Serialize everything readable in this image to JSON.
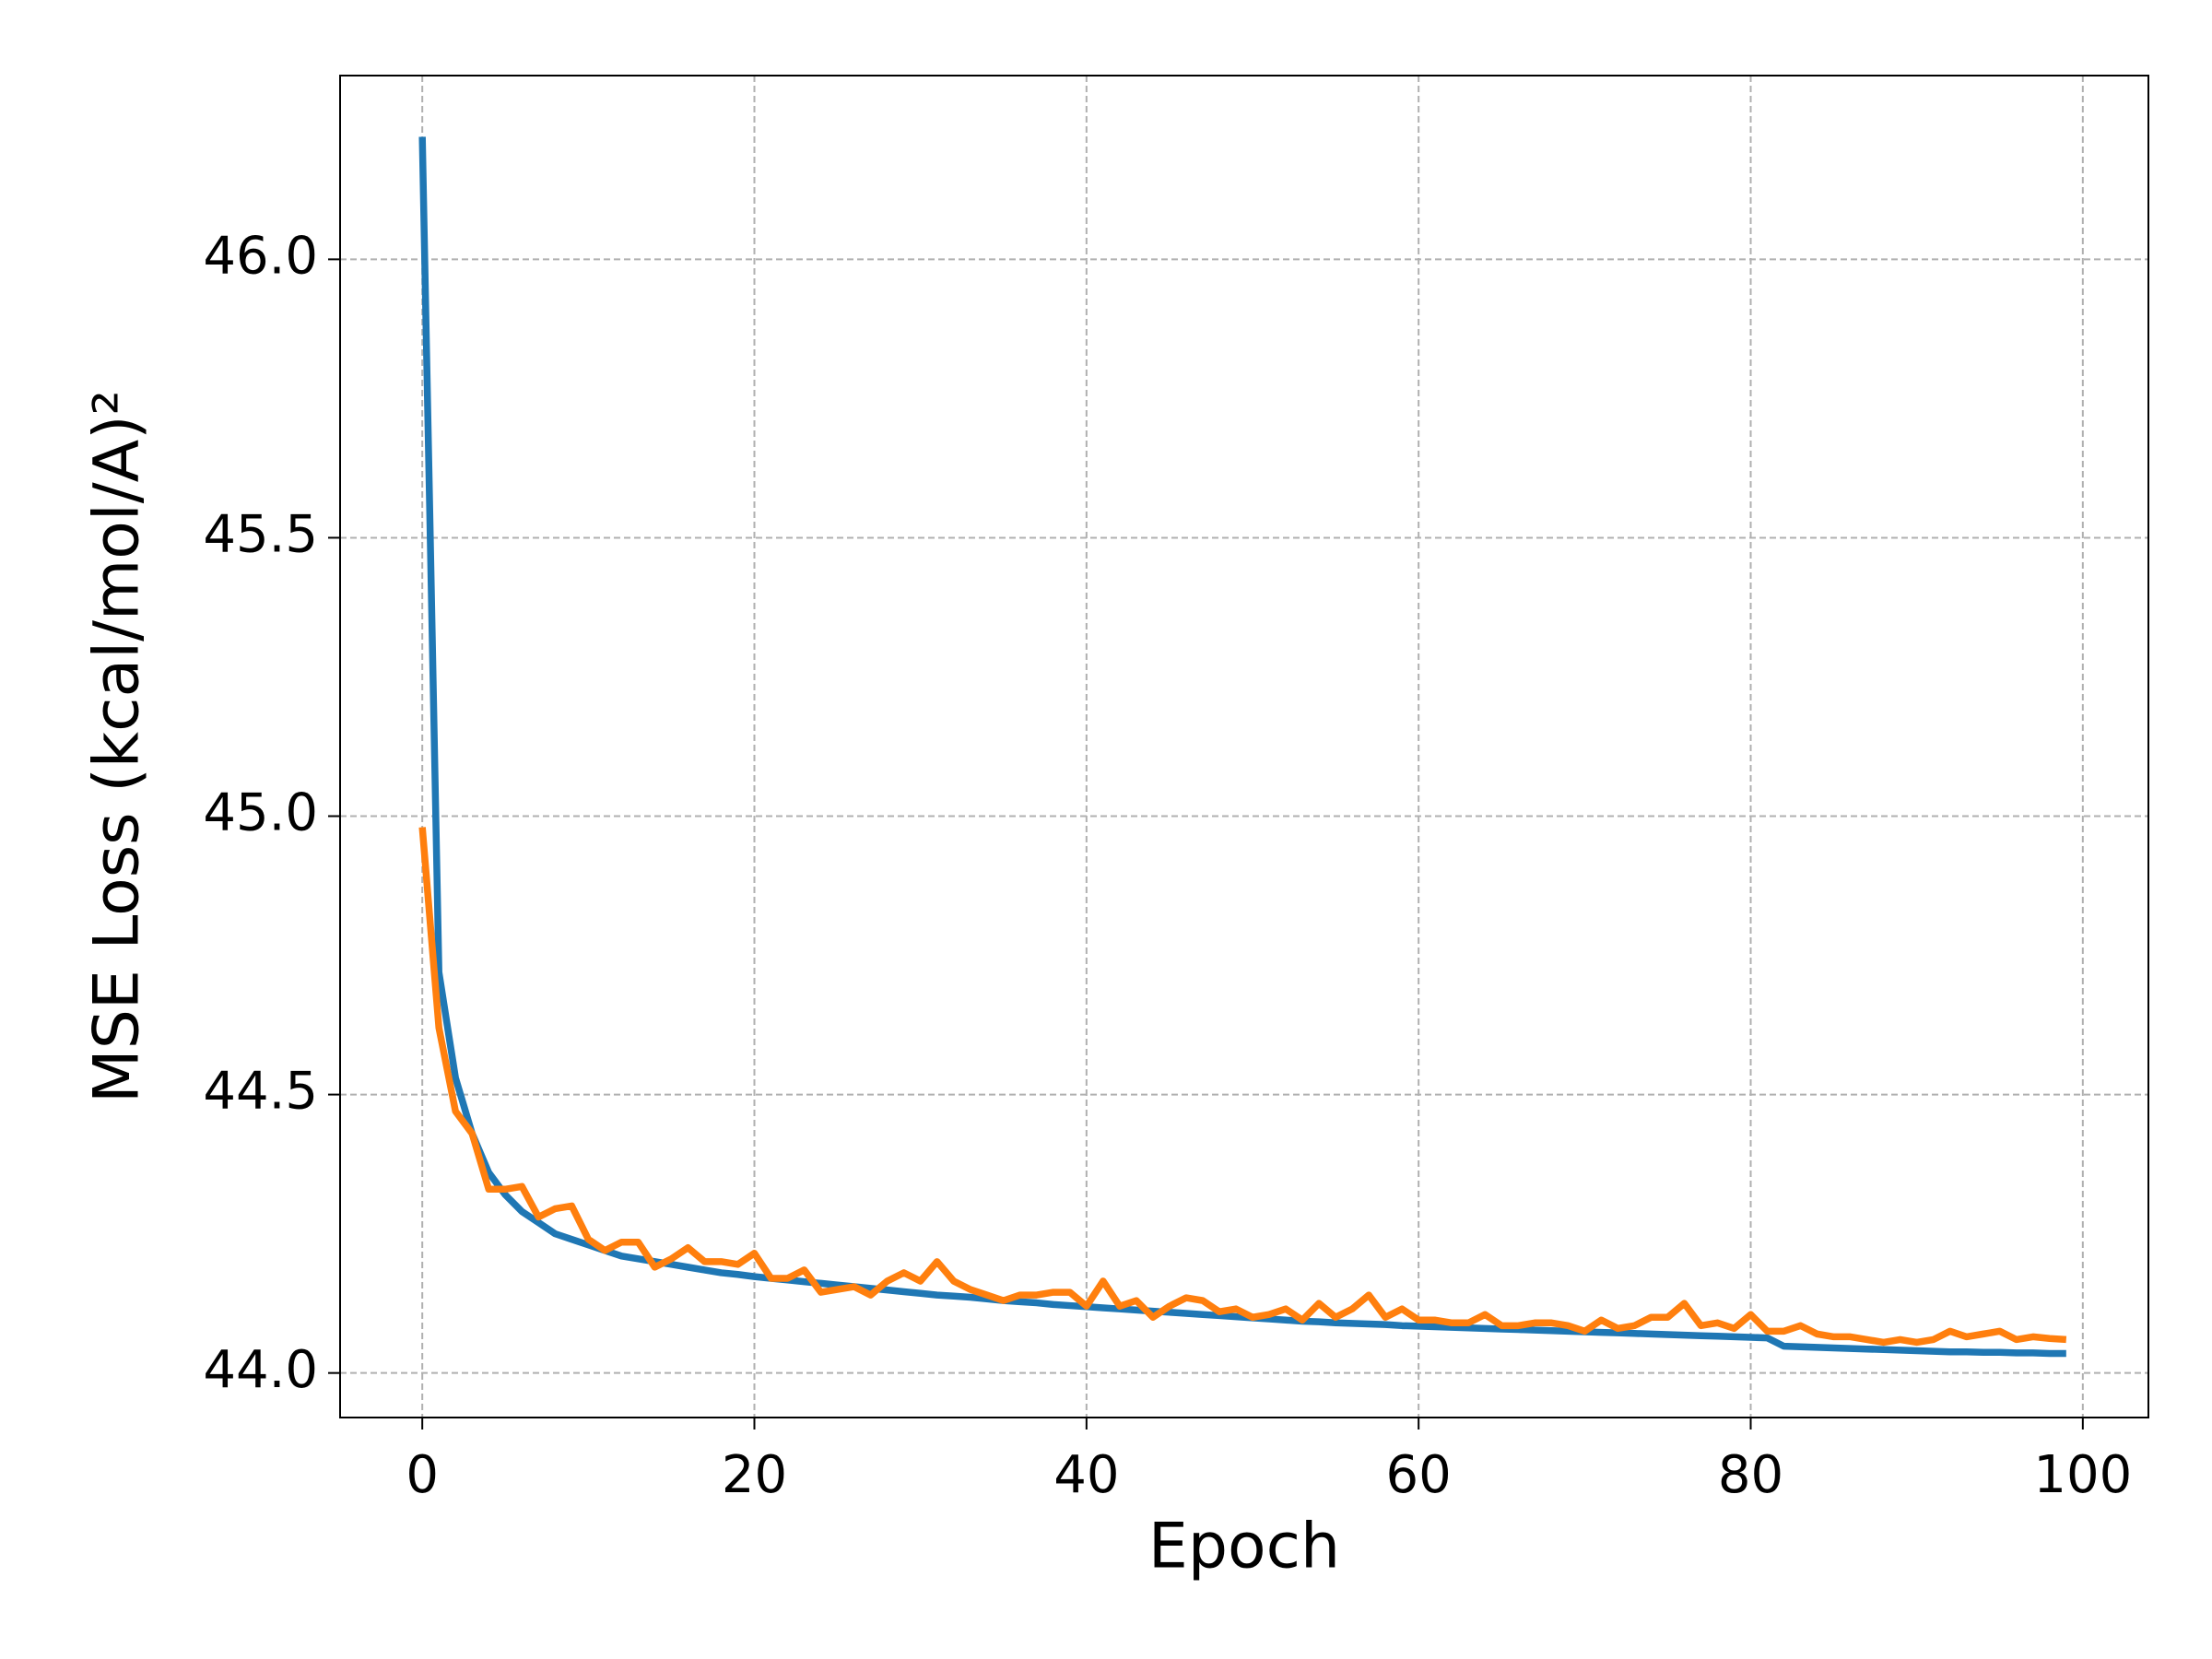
{
  "chart_data": {
    "type": "line",
    "xlabel": "Epoch",
    "ylabel": "MSE Loss (kcal/mol/A)²",
    "x": [
      0,
      1,
      2,
      3,
      4,
      5,
      6,
      7,
      8,
      9,
      10,
      11,
      12,
      13,
      14,
      15,
      16,
      17,
      18,
      19,
      20,
      21,
      22,
      23,
      24,
      25,
      26,
      27,
      28,
      29,
      30,
      31,
      32,
      33,
      34,
      35,
      36,
      37,
      38,
      39,
      40,
      41,
      42,
      43,
      44,
      45,
      46,
      47,
      48,
      49,
      50,
      51,
      52,
      53,
      54,
      55,
      56,
      57,
      58,
      59,
      60,
      61,
      62,
      63,
      64,
      65,
      66,
      67,
      68,
      69,
      70,
      71,
      72,
      73,
      74,
      75,
      76,
      77,
      78,
      79,
      80,
      81,
      82,
      83,
      84,
      85,
      86,
      87,
      88,
      89,
      90,
      91,
      92,
      93,
      94,
      95,
      96,
      97,
      98,
      99
    ],
    "series": [
      {
        "color": "#1f77b4",
        "values": [
          46.22,
          44.72,
          44.53,
          44.43,
          44.36,
          44.32,
          44.29,
          44.27,
          44.25,
          44.24,
          44.23,
          44.22,
          44.21,
          44.205,
          44.2,
          44.195,
          44.19,
          44.185,
          44.18,
          44.177,
          44.173,
          44.17,
          44.167,
          44.164,
          44.161,
          44.158,
          44.155,
          44.152,
          44.149,
          44.146,
          44.143,
          44.14,
          44.138,
          44.136,
          44.133,
          44.13,
          44.128,
          44.126,
          44.123,
          44.121,
          44.119,
          44.117,
          44.115,
          44.113,
          44.111,
          44.109,
          44.107,
          44.105,
          44.103,
          44.101,
          44.099,
          44.097,
          44.095,
          44.093,
          44.092,
          44.09,
          44.089,
          44.088,
          44.087,
          44.085,
          44.084,
          44.083,
          44.082,
          44.081,
          44.08,
          44.079,
          44.078,
          44.077,
          44.076,
          44.075,
          44.074,
          44.073,
          44.072,
          44.071,
          44.07,
          44.069,
          44.068,
          44.067,
          44.066,
          44.065,
          44.064,
          44.063,
          44.048,
          44.047,
          44.046,
          44.045,
          44.044,
          44.043,
          44.042,
          44.041,
          44.04,
          44.039,
          44.038,
          44.038,
          44.037,
          44.037,
          44.036,
          44.036,
          44.035,
          44.035
        ]
      },
      {
        "color": "#ff7f0e",
        "values": [
          44.98,
          44.62,
          44.47,
          44.43,
          44.33,
          44.33,
          44.335,
          44.28,
          44.295,
          44.3,
          44.24,
          44.22,
          44.235,
          44.235,
          44.19,
          44.205,
          44.225,
          44.2,
          44.2,
          44.195,
          44.215,
          44.17,
          44.17,
          44.185,
          44.145,
          44.15,
          44.155,
          44.14,
          44.165,
          44.18,
          44.165,
          44.2,
          44.165,
          44.15,
          44.14,
          44.13,
          44.14,
          44.14,
          44.145,
          44.145,
          44.12,
          44.165,
          44.12,
          44.13,
          44.1,
          44.12,
          44.135,
          44.13,
          44.11,
          44.115,
          44.1,
          44.105,
          44.115,
          44.095,
          44.125,
          44.1,
          44.115,
          44.14,
          44.1,
          44.115,
          44.095,
          44.095,
          44.09,
          44.09,
          44.105,
          44.085,
          44.085,
          44.09,
          44.09,
          44.085,
          44.075,
          44.095,
          44.08,
          44.085,
          44.1,
          44.1,
          44.125,
          44.085,
          44.09,
          44.08,
          44.105,
          44.075,
          44.075,
          44.085,
          44.07,
          44.065,
          44.065,
          44.06,
          44.055,
          44.06,
          44.055,
          44.06,
          44.075,
          44.065,
          44.07,
          44.075,
          44.06,
          44.065,
          44.062,
          44.06
        ]
      }
    ],
    "xlim": [
      -4.95,
      103.95
    ],
    "ylim": [
      43.92,
      46.33
    ],
    "xticks": [
      0,
      20,
      40,
      60,
      80,
      100
    ],
    "yticks": [
      {
        "value": 44,
        "label": "44.0"
      },
      {
        "value": 44.5,
        "label": "44.5"
      },
      {
        "value": 45,
        "label": "45.0"
      },
      {
        "value": 45.5,
        "label": "45.5"
      },
      {
        "value": 46,
        "label": "46.0"
      }
    ],
    "grid": true
  }
}
